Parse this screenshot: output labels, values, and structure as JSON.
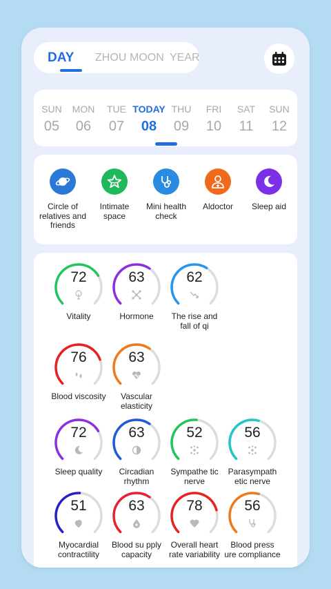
{
  "period_tabs": {
    "day": "DAY",
    "week": "ZHOU",
    "month": "MOON",
    "year": "YEAR"
  },
  "calendar_button": {
    "icon": "calendar-icon"
  },
  "week": {
    "days": [
      {
        "weekday": "SUN",
        "date": "05"
      },
      {
        "weekday": "MON",
        "date": "06"
      },
      {
        "weekday": "TUE",
        "date": "07"
      },
      {
        "weekday": "TODAY",
        "date": "08"
      },
      {
        "weekday": "THU",
        "date": "09"
      },
      {
        "weekday": "FRI",
        "date": "10"
      },
      {
        "weekday": "SAT",
        "date": "11"
      },
      {
        "weekday": "SUN",
        "date": "12"
      }
    ]
  },
  "services": [
    {
      "label": "Circle of relatives and friends",
      "icon": "planet-icon",
      "color": "#2979d6"
    },
    {
      "label": "Intimate space",
      "icon": "star-icon",
      "color": "#1fb85a"
    },
    {
      "label": "Mini health check",
      "icon": "stethoscope-icon",
      "color": "#2a8ce0"
    },
    {
      "label": "Aldoctor",
      "icon": "doctor-icon",
      "color": "#f06a1c"
    },
    {
      "label": "Sleep aid",
      "icon": "moon-icon",
      "color": "#7b2fe6"
    }
  ],
  "metrics": [
    {
      "value": "72",
      "label": "Vitality",
      "color": "#22c55e",
      "icon": "tree-icon"
    },
    {
      "value": "63",
      "label": "Hormone",
      "color": "#8b2fe0",
      "icon": "molecule-icon"
    },
    {
      "value": "62",
      "label": "The rise and fall of qi",
      "color": "#2196f3",
      "icon": "trend-icon"
    },
    {
      "value": "76",
      "label": "Blood viscosity",
      "color": "#e82020",
      "icon": "drops-icon"
    },
    {
      "value": "63",
      "label": "Vascular elasticity",
      "color": "#f07a1a",
      "icon": "heart-pulse-icon"
    },
    {
      "value": "72",
      "label": "Sleep quality",
      "color": "#8b2fe0",
      "icon": "moon-icon"
    },
    {
      "value": "63",
      "label": "Circadian rhythm",
      "color": "#1f5ad8",
      "icon": "half-circle-icon"
    },
    {
      "value": "52",
      "label": "Sympathe tic nerve",
      "color": "#22c55e",
      "icon": "nerve-icon"
    },
    {
      "value": "56",
      "label": "Parasympath etic nerve",
      "color": "#22c6c6",
      "icon": "nerve-icon"
    },
    {
      "value": "51",
      "label": "Myocardial contractility",
      "color": "#2420c8",
      "icon": "heart-organ-icon"
    },
    {
      "value": "63",
      "label": "Blood su pply capacity",
      "color": "#e82030",
      "icon": "blood-drop-icon"
    },
    {
      "value": "78",
      "label": "Overall heart rate variability",
      "color": "#e82020",
      "icon": "heart-icon"
    },
    {
      "value": "56",
      "label": "Blood press ure compliance",
      "color": "#f07a1a",
      "icon": "stethoscope-icon"
    }
  ]
}
